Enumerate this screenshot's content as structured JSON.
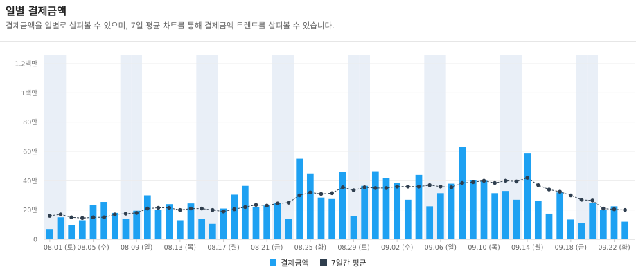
{
  "header": {
    "title": "일별 결제금액",
    "subtitle": "결제금액을 일별로 살펴볼 수 있으며, 7일 평균 차트를 통해 결제금액 트렌드를 살펴볼 수 있습니다."
  },
  "colors": {
    "bar": "#1ea1f2",
    "avg": "#2f3e4e",
    "shade": "#e9eff7",
    "grid": "#ececec"
  },
  "chart_data": {
    "type": "bar",
    "title": "",
    "xlabel": "",
    "ylabel": "",
    "ylim": [
      0,
      1200000
    ],
    "yticks": [
      0,
      200000,
      400000,
      600000,
      800000,
      1000000,
      1200000
    ],
    "ytick_labels": [
      "0",
      "20만",
      "40만",
      "60만",
      "80만",
      "1백만",
      "1.2백만"
    ],
    "x_tick_labels": [
      "08.01 (토)",
      "08.05 (수)",
      "08.09 (일)",
      "08.13 (목)",
      "08.17 (월)",
      "08.21 (금)",
      "08.25 (화)",
      "08.29 (토)",
      "09.02 (수)",
      "09.06 (일)",
      "09.10 (목)",
      "09.14 (월)",
      "09.18 (금)",
      "09.22 (화)"
    ],
    "shaded_weekend_day_indices": [
      0,
      1,
      7,
      8,
      14,
      15,
      21,
      22,
      28,
      29,
      35,
      36,
      42,
      43,
      49,
      50,
      56,
      57
    ],
    "series": [
      {
        "name": "결제금액",
        "type": "bar",
        "values": [
          70000,
          150000,
          95000,
          130000,
          235000,
          255000,
          180000,
          140000,
          195000,
          300000,
          200000,
          240000,
          130000,
          245000,
          140000,
          105000,
          210000,
          305000,
          365000,
          220000,
          230000,
          245000,
          140000,
          550000,
          450000,
          285000,
          275000,
          460000,
          160000,
          365000,
          465000,
          420000,
          385000,
          270000,
          440000,
          225000,
          315000,
          380000,
          630000,
          405000,
          400000,
          315000,
          330000,
          270000,
          590000,
          260000,
          175000,
          320000,
          135000,
          110000,
          250000,
          200000,
          225000,
          120000
        ]
      },
      {
        "name": "7일간 평균",
        "type": "line",
        "values": [
          160000,
          170000,
          150000,
          145000,
          150000,
          150000,
          170000,
          175000,
          180000,
          210000,
          215000,
          215000,
          200000,
          210000,
          210000,
          200000,
          190000,
          205000,
          220000,
          235000,
          230000,
          245000,
          250000,
          300000,
          320000,
          310000,
          315000,
          355000,
          335000,
          355000,
          350000,
          350000,
          360000,
          360000,
          360000,
          370000,
          360000,
          355000,
          385000,
          390000,
          400000,
          385000,
          400000,
          395000,
          420000,
          370000,
          340000,
          325000,
          300000,
          270000,
          265000,
          210000,
          205000,
          200000
        ]
      }
    ]
  },
  "legend": {
    "bar_label": "결제금액",
    "avg_label": "7일간 평균"
  }
}
